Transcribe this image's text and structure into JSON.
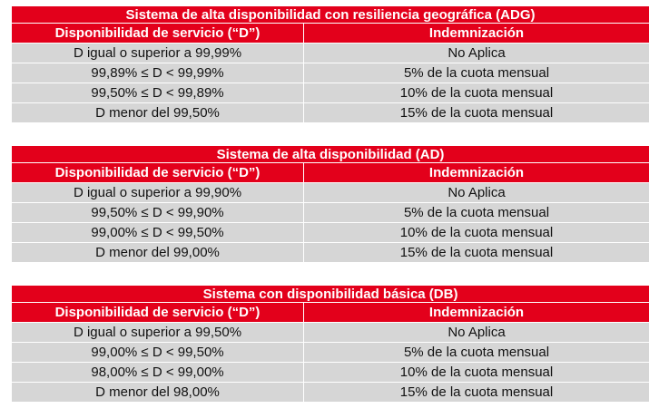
{
  "tables": [
    {
      "title": "Sistema de alta disponibilidad con resiliencia geográfica (ADG)",
      "headers": [
        "Disponibilidad de servicio (“D”)",
        "Indemnización"
      ],
      "rows": [
        [
          "D igual o superior a 99,99%",
          "No Aplica"
        ],
        [
          "99,89% ≤  D  < 99,99%",
          "5% de la cuota mensual"
        ],
        [
          "99,50% ≤  D  < 99,89%",
          "10% de la cuota mensual"
        ],
        [
          "D menor del 99,50%",
          "15% de la cuota mensual"
        ]
      ]
    },
    {
      "title": "Sistema de alta disponibilidad (AD)",
      "headers": [
        "Disponibilidad de servicio (“D”)",
        "Indemnización"
      ],
      "rows": [
        [
          "D igual o superior a 99,90%",
          "No Aplica"
        ],
        [
          "99,50% ≤  D  < 99,90%",
          "5% de la cuota mensual"
        ],
        [
          "99,00% ≤  D  < 99,50%",
          "10% de la cuota mensual"
        ],
        [
          "D menor del 99,00%",
          "15% de la cuota mensual"
        ]
      ]
    },
    {
      "title": "Sistema con disponibilidad básica (DB)",
      "headers": [
        "Disponibilidad de servicio (“D”)",
        "Indemnización"
      ],
      "rows": [
        [
          "D igual o superior a 99,50%",
          "No Aplica"
        ],
        [
          "99,00% ≤  D  < 99,50%",
          "5% de la cuota mensual"
        ],
        [
          "98,00% ≤  D  < 99,00%",
          "10% de la cuota mensual"
        ],
        [
          "D menor del 98,00%",
          "15% de la cuota mensual"
        ]
      ]
    }
  ],
  "colors": {
    "header_red": "#e3001b",
    "header_text": "#ffffff",
    "row_gray": "#d6d6d6",
    "body_text": "#111111"
  }
}
